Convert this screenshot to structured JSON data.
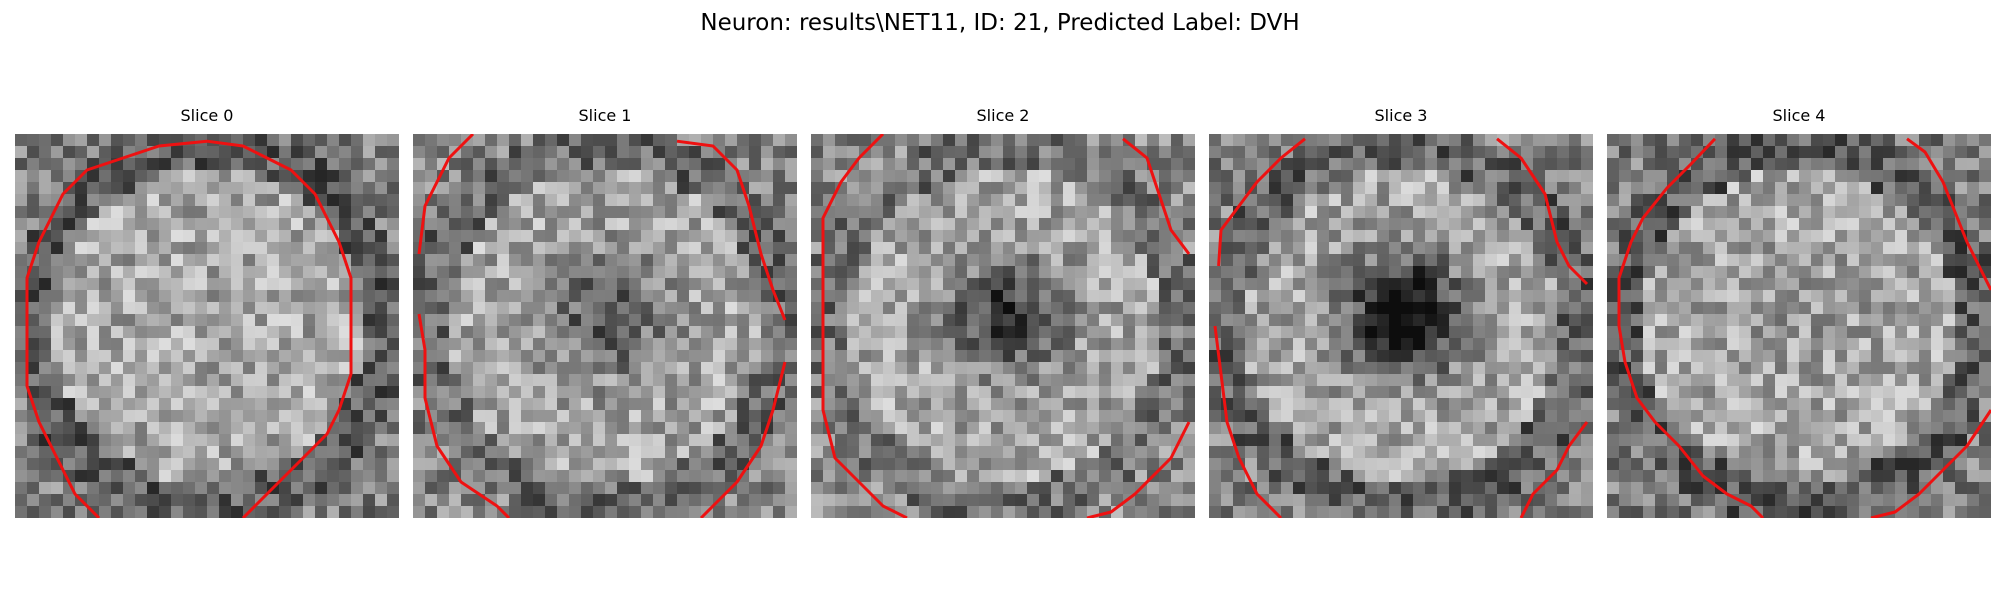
{
  "figure": {
    "title": "Neuron: results\\NET11, ID: 21, Predicted Label: DVH",
    "contour_color": "#ee1111",
    "colormap": "gray"
  },
  "panels": [
    {
      "title": "Slice 0",
      "seed": 11,
      "dark_blob": 0.0,
      "ring_darkness": 0.3
    },
    {
      "title": "Slice 1",
      "seed": 23,
      "dark_blob": 0.35,
      "ring_darkness": 0.25
    },
    {
      "title": "Slice 2",
      "seed": 37,
      "dark_blob": 0.45,
      "ring_darkness": 0.22
    },
    {
      "title": "Slice 3",
      "seed": 51,
      "dark_blob": 0.7,
      "ring_darkness": 0.28
    },
    {
      "title": "Slice 4",
      "seed": 67,
      "dark_blob": 0.05,
      "ring_darkness": 0.3
    }
  ]
}
